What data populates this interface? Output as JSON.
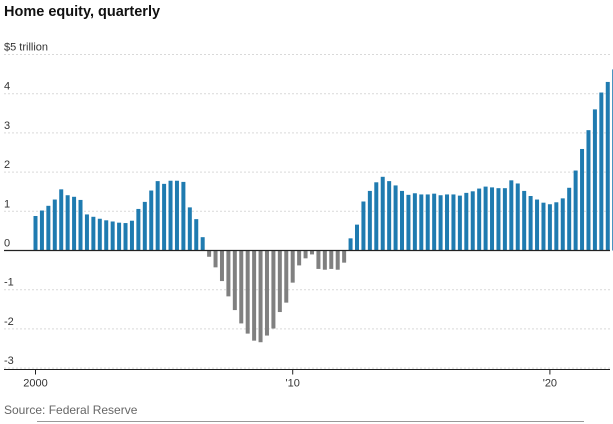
{
  "chart_data": {
    "type": "bar",
    "title": "Home equity, quarterly",
    "source": "Source: Federal Reserve",
    "ylim": [
      -3,
      5
    ],
    "y_ticks": [
      {
        "value": 5,
        "label": "$5 trillion"
      },
      {
        "value": 4,
        "label": "4"
      },
      {
        "value": 3,
        "label": "3"
      },
      {
        "value": 2,
        "label": "2"
      },
      {
        "value": 1,
        "label": "1"
      },
      {
        "value": 0,
        "label": "0"
      },
      {
        "value": -1,
        "label": "-1"
      },
      {
        "value": -2,
        "label": "-2"
      },
      {
        "value": -3,
        "label": "-3"
      }
    ],
    "x_start": 2000,
    "x_ticks": [
      {
        "value": 2000,
        "label": "2000"
      },
      {
        "value": 2010,
        "label": "'10"
      },
      {
        "value": 2020,
        "label": "'20"
      }
    ],
    "grid": true,
    "positive_color": "#1f7bb0",
    "negative_color": "#808080",
    "values": [
      0.88,
      1.02,
      1.14,
      1.3,
      1.56,
      1.41,
      1.37,
      1.29,
      0.92,
      0.86,
      0.81,
      0.77,
      0.74,
      0.71,
      0.7,
      0.76,
      1.06,
      1.24,
      1.53,
      1.77,
      1.7,
      1.78,
      1.78,
      1.75,
      1.1,
      0.8,
      0.34,
      -0.16,
      -0.43,
      -0.78,
      -1.17,
      -1.52,
      -1.86,
      -2.12,
      -2.3,
      -2.34,
      -2.17,
      -1.99,
      -1.57,
      -1.33,
      -0.82,
      -0.38,
      -0.2,
      -0.1,
      -0.47,
      -0.49,
      -0.47,
      -0.49,
      -0.31,
      0.31,
      0.66,
      1.25,
      1.52,
      1.74,
      1.88,
      1.77,
      1.66,
      1.52,
      1.42,
      1.46,
      1.43,
      1.43,
      1.45,
      1.41,
      1.43,
      1.43,
      1.4,
      1.47,
      1.51,
      1.58,
      1.63,
      1.61,
      1.59,
      1.59,
      1.79,
      1.71,
      1.52,
      1.39,
      1.3,
      1.22,
      1.18,
      1.23,
      1.33,
      1.6,
      2.04,
      2.59,
      3.07,
      3.6,
      4.03,
      4.3,
      4.62
    ]
  }
}
